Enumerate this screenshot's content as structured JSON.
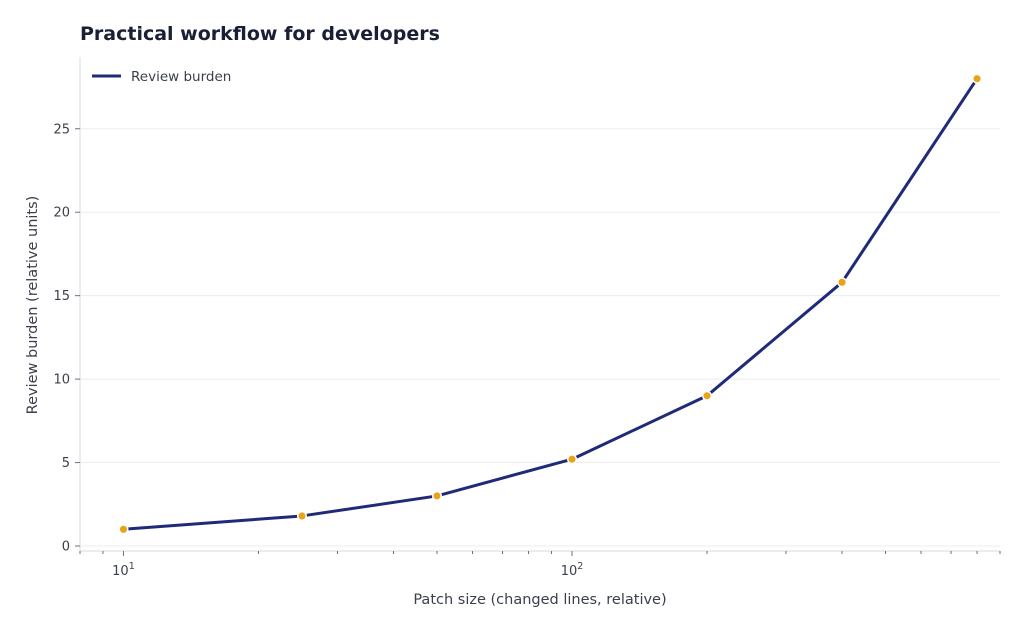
{
  "chart_data": {
    "type": "line",
    "title": "Practical workflow for developers",
    "xlabel": "Patch size (changed lines, relative)",
    "ylabel": "Review burden (relative units)",
    "xscale": "log",
    "xlim": [
      8,
      900
    ],
    "ylim": [
      -0.3,
      29.3
    ],
    "xticks": [
      {
        "value": 10,
        "base": "10",
        "exp": "1"
      },
      {
        "value": 100,
        "base": "10",
        "exp": "2"
      }
    ],
    "yticks": [
      0,
      5,
      10,
      15,
      20,
      25
    ],
    "grid": "horizontal",
    "legend_position": "top-left",
    "series": [
      {
        "name": "Review burden",
        "color": "#1f2a78",
        "marker_color": "#e8a317",
        "x": [
          10,
          25,
          50,
          100,
          200,
          400,
          800
        ],
        "y": [
          1.0,
          1.8,
          3.0,
          5.2,
          9.0,
          15.8,
          28.0
        ]
      }
    ]
  }
}
